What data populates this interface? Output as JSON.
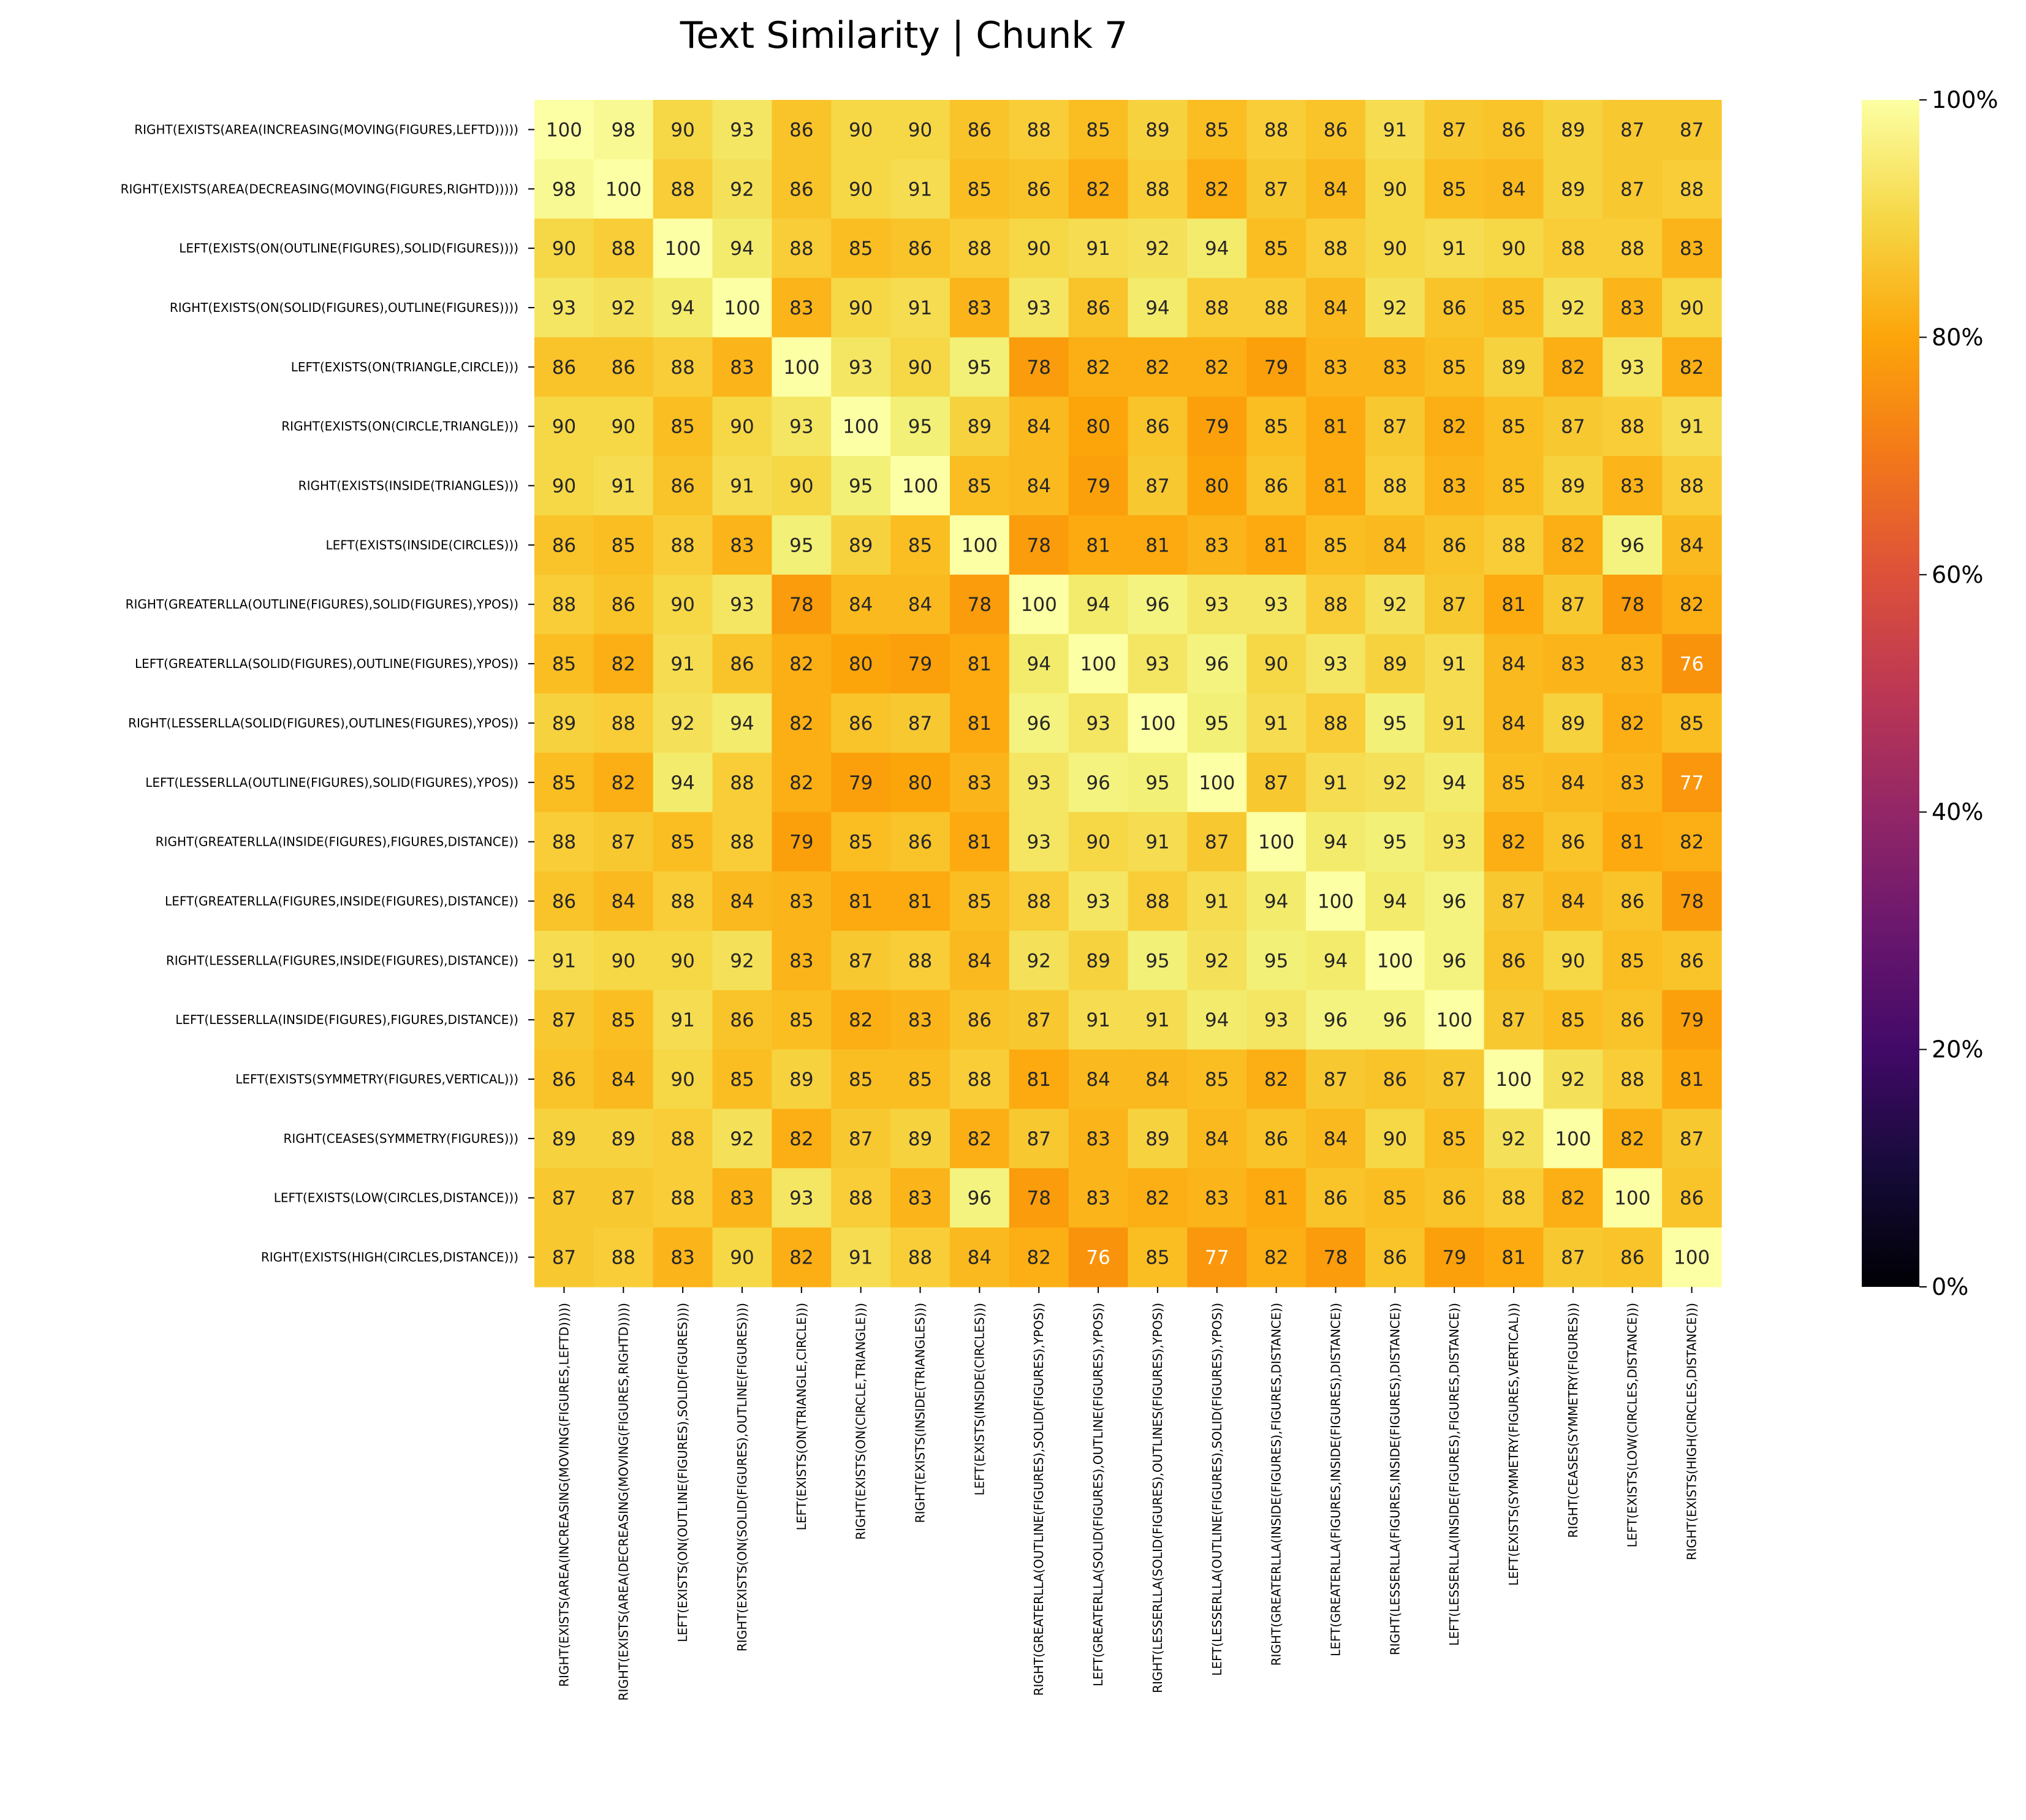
{
  "chart_data": {
    "type": "heatmap",
    "title": "Text Similarity | Chunk 7",
    "colormap": "inferno",
    "vmin": 0,
    "vmax": 100,
    "annotations": true,
    "labels": [
      "RIGHT(EXISTS(AREA(INCREASING(MOVING(FIGURES,LEFTD)))))",
      "RIGHT(EXISTS(AREA(DECREASING(MOVING(FIGURES,RIGHTD)))))",
      "LEFT(EXISTS(ON(OUTLINE(FIGURES),SOLID(FIGURES))))",
      "RIGHT(EXISTS(ON(SOLID(FIGURES),OUTLINE(FIGURES))))",
      "LEFT(EXISTS(ON(TRIANGLE,CIRCLE)))",
      "RIGHT(EXISTS(ON(CIRCLE,TRIANGLE)))",
      "RIGHT(EXISTS(INSIDE(TRIANGLES)))",
      "LEFT(EXISTS(INSIDE(CIRCLES)))",
      "RIGHT(GREATERLLA(OUTLINE(FIGURES),SOLID(FIGURES),YPOS))",
      "LEFT(GREATERLLA(SOLID(FIGURES),OUTLINE(FIGURES),YPOS))",
      "RIGHT(LESSERLLA(SOLID(FIGURES),OUTLINES(FIGURES),YPOS))",
      "LEFT(LESSERLLA(OUTLINE(FIGURES),SOLID(FIGURES),YPOS))",
      "RIGHT(GREATERLLA(INSIDE(FIGURES),FIGURES,DISTANCE))",
      "LEFT(GREATERLLA(FIGURES,INSIDE(FIGURES),DISTANCE))",
      "RIGHT(LESSERLLA(FIGURES,INSIDE(FIGURES),DISTANCE))",
      "LEFT(LESSERLLA(INSIDE(FIGURES),FIGURES,DISTANCE))",
      "LEFT(EXISTS(SYMMETRY(FIGURES,VERTICAL)))",
      "RIGHT(CEASES(SYMMETRY(FIGURES)))",
      "LEFT(EXISTS(LOW(CIRCLES,DISTANCE)))",
      "RIGHT(EXISTS(HIGH(CIRCLES,DISTANCE)))"
    ],
    "values": [
      [
        100,
        98,
        90,
        93,
        86,
        90,
        90,
        86,
        88,
        85,
        89,
        85,
        88,
        86,
        91,
        87,
        86,
        89,
        87,
        87
      ],
      [
        98,
        100,
        88,
        92,
        86,
        90,
        91,
        85,
        86,
        82,
        88,
        82,
        87,
        84,
        90,
        85,
        84,
        89,
        87,
        88
      ],
      [
        90,
        88,
        100,
        94,
        88,
        85,
        86,
        88,
        90,
        91,
        92,
        94,
        85,
        88,
        90,
        91,
        90,
        88,
        88,
        83
      ],
      [
        93,
        92,
        94,
        100,
        83,
        90,
        91,
        83,
        93,
        86,
        94,
        88,
        88,
        84,
        92,
        86,
        85,
        92,
        83,
        90
      ],
      [
        86,
        86,
        88,
        83,
        100,
        93,
        90,
        95,
        78,
        82,
        82,
        82,
        79,
        83,
        83,
        85,
        89,
        82,
        93,
        82
      ],
      [
        90,
        90,
        85,
        90,
        93,
        100,
        95,
        89,
        84,
        80,
        86,
        79,
        85,
        81,
        87,
        82,
        85,
        87,
        88,
        91
      ],
      [
        90,
        91,
        86,
        91,
        90,
        95,
        100,
        85,
        84,
        79,
        87,
        80,
        86,
        81,
        88,
        83,
        85,
        89,
        83,
        88
      ],
      [
        86,
        85,
        88,
        83,
        95,
        89,
        85,
        100,
        78,
        81,
        81,
        83,
        81,
        85,
        84,
        86,
        88,
        82,
        96,
        84
      ],
      [
        88,
        86,
        90,
        93,
        78,
        84,
        84,
        78,
        100,
        94,
        96,
        93,
        93,
        88,
        92,
        87,
        81,
        87,
        78,
        82
      ],
      [
        85,
        82,
        91,
        86,
        82,
        80,
        79,
        81,
        94,
        100,
        93,
        96,
        90,
        93,
        89,
        91,
        84,
        83,
        83,
        76
      ],
      [
        89,
        88,
        92,
        94,
        82,
        86,
        87,
        81,
        96,
        93,
        100,
        95,
        91,
        88,
        95,
        91,
        84,
        89,
        82,
        85
      ],
      [
        85,
        82,
        94,
        88,
        82,
        79,
        80,
        83,
        93,
        96,
        95,
        100,
        87,
        91,
        92,
        94,
        85,
        84,
        83,
        77
      ],
      [
        88,
        87,
        85,
        88,
        79,
        85,
        86,
        81,
        93,
        90,
        91,
        87,
        100,
        94,
        95,
        93,
        82,
        86,
        81,
        82
      ],
      [
        86,
        84,
        88,
        84,
        83,
        81,
        81,
        85,
        88,
        93,
        88,
        91,
        94,
        100,
        94,
        96,
        87,
        84,
        86,
        78
      ],
      [
        91,
        90,
        90,
        92,
        83,
        87,
        88,
        84,
        92,
        89,
        95,
        92,
        95,
        94,
        100,
        96,
        86,
        90,
        85,
        86
      ],
      [
        87,
        85,
        91,
        86,
        85,
        82,
        83,
        86,
        87,
        91,
        91,
        94,
        93,
        96,
        96,
        100,
        87,
        85,
        86,
        79
      ],
      [
        86,
        84,
        90,
        85,
        89,
        85,
        85,
        88,
        81,
        84,
        84,
        85,
        82,
        87,
        86,
        87,
        100,
        92,
        88,
        81
      ],
      [
        89,
        89,
        88,
        92,
        82,
        87,
        89,
        82,
        87,
        83,
        89,
        84,
        86,
        84,
        90,
        85,
        92,
        100,
        82,
        87
      ],
      [
        87,
        87,
        88,
        83,
        93,
        88,
        83,
        96,
        78,
        83,
        82,
        83,
        81,
        86,
        85,
        86,
        88,
        82,
        100,
        86
      ],
      [
        87,
        88,
        83,
        90,
        82,
        91,
        88,
        84,
        82,
        76,
        85,
        77,
        82,
        78,
        86,
        79,
        81,
        87,
        86,
        100
      ]
    ],
    "colorbar": {
      "ticks": [
        0,
        20,
        40,
        60,
        80,
        100
      ],
      "tick_labels": [
        "0%",
        "20%",
        "40%",
        "60%",
        "80%",
        "100%"
      ]
    }
  }
}
